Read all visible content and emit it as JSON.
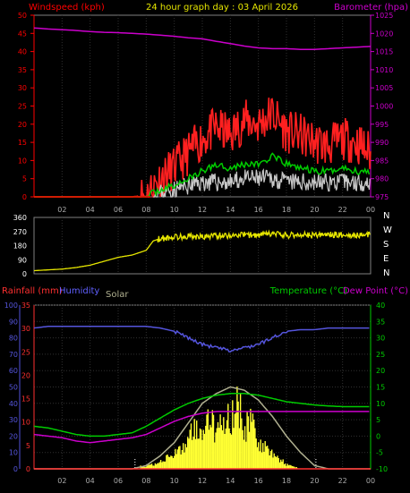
{
  "header": {
    "left": "Windspeed (kph)",
    "center": "24 hour graph day : 03 April 2026",
    "right": "Barometer (hpa)"
  },
  "colors": {
    "windspeed": "#ff0000",
    "gust": "#ff2020",
    "avg_wind": "#00cc00",
    "wind_gray": "#c8c8c8",
    "wind_black": "#000000",
    "barometer": "#cc00cc",
    "direction": "#e6e600",
    "rainfall": "#ff3030",
    "humidity": "#5555dd",
    "solar": "#b0b090",
    "temperature": "#00cc00",
    "dewpoint": "#cc00cc",
    "grid": "#303030",
    "axis_left": "#ff0000",
    "axis_right": "#cc00cc"
  },
  "panel3": {
    "rain_label": "Rainfall (mm)",
    "humidity_label": "Humidity",
    "solar_label": "Solar",
    "temp_label": "Temperature (°C)",
    "dew_label": "Dew Point (°C)"
  },
  "x_ticks": [
    "02",
    "04",
    "06",
    "08",
    "10",
    "12",
    "14",
    "16",
    "18",
    "20",
    "22",
    "00"
  ],
  "chart_data": [
    {
      "type": "line",
      "title": "24 hour graph day : 03 April 2026",
      "ylabel": "Windspeed (kph)",
      "y2label": "Barometer (hpa)",
      "ylim": [
        0,
        50
      ],
      "y2lim": [
        975,
        1025
      ],
      "y_ticks": [
        "0",
        "5",
        "10",
        "15",
        "20",
        "25",
        "30",
        "35",
        "40",
        "45",
        "50"
      ],
      "y2_ticks": [
        "975",
        "980",
        "985",
        "990",
        "995",
        "1000",
        "1005",
        "1010",
        "1015",
        "1020",
        "1025"
      ],
      "x_hours": [
        0,
        1,
        2,
        3,
        4,
        5,
        6,
        7,
        8,
        9,
        10,
        11,
        12,
        13,
        14,
        15,
        16,
        17,
        18,
        19,
        20,
        21,
        22,
        23,
        24
      ],
      "series": [
        {
          "name": "Barometer (hpa)",
          "axis": "right",
          "values": [
            1021.5,
            1021.2,
            1021.0,
            1020.8,
            1020.5,
            1020.3,
            1020.2,
            1020.0,
            1019.8,
            1019.5,
            1019.2,
            1018.8,
            1018.5,
            1017.8,
            1017.2,
            1016.5,
            1016.0,
            1015.8,
            1015.8,
            1015.6,
            1015.6,
            1015.8,
            1016.0,
            1016.2,
            1016.4
          ]
        },
        {
          "axis": "left",
          "values": [
            0,
            0,
            0,
            0,
            0,
            0,
            0,
            0,
            0.5,
            5,
            8,
            12,
            16,
            19,
            17,
            21,
            20,
            23,
            18,
            17,
            15,
            14,
            16,
            15,
            12
          ]
        },
        {
          "axis": "left",
          "values": [
            0,
            0,
            0,
            0,
            0,
            0,
            0,
            0,
            0,
            2,
            3,
            5,
            7,
            9,
            8,
            9,
            9,
            11,
            9,
            8,
            7,
            7,
            8,
            7,
            7
          ]
        },
        {
          "axis": "left",
          "values": [
            0,
            0,
            0,
            0,
            0,
            0,
            0,
            0,
            0,
            1,
            2,
            3,
            4,
            4,
            4,
            5,
            5,
            5,
            4,
            4,
            4,
            4,
            4,
            4,
            4
          ]
        }
      ]
    },
    {
      "type": "line",
      "ylabel": "Wind direction",
      "ylim": [
        0,
        360
      ],
      "y_ticks": [
        "0",
        "90",
        "180",
        "270",
        "360"
      ],
      "y2_ticks": [
        "N",
        "W",
        "S",
        "E",
        "N"
      ],
      "x_hours": [
        0,
        1,
        2,
        3,
        4,
        5,
        6,
        7,
        8,
        8.5,
        9,
        10,
        11,
        12,
        13,
        14,
        15,
        16,
        17,
        18,
        19,
        20,
        21,
        22,
        23,
        24
      ],
      "values": [
        20,
        25,
        30,
        40,
        55,
        80,
        105,
        120,
        150,
        210,
        225,
        235,
        240,
        235,
        245,
        245,
        250,
        245,
        255,
        245,
        250,
        245,
        250,
        250,
        245,
        250
      ]
    },
    {
      "type": "line",
      "ylabel": "Rainfall (mm)",
      "y2label": "Temperature (°C) / Dew Point (°C)",
      "ylim": [
        0,
        35
      ],
      "humidity_lim": [
        0,
        100
      ],
      "y2lim": [
        -10,
        40
      ],
      "rain_ticks": [
        "0",
        "5",
        "10",
        "15",
        "20",
        "25",
        "30",
        "35"
      ],
      "humidity_ticks": [
        "0",
        "10",
        "20",
        "30",
        "40",
        "50",
        "60",
        "70",
        "80",
        "90",
        "100"
      ],
      "temp_ticks": [
        "-10",
        "-5",
        "0",
        "5",
        "10",
        "15",
        "20",
        "25",
        "30",
        "35",
        "40"
      ],
      "x_hours": [
        0,
        1,
        2,
        3,
        4,
        5,
        6,
        7,
        8,
        9,
        10,
        11,
        12,
        13,
        14,
        15,
        16,
        17,
        18,
        19,
        20,
        21,
        22,
        23,
        24
      ],
      "series": [
        {
          "name": "Humidity",
          "axis": "humidity",
          "values": [
            86,
            87,
            87,
            87,
            87,
            87,
            87,
            87,
            87,
            86,
            84,
            80,
            76,
            74,
            72,
            74,
            76,
            80,
            84,
            85,
            85,
            86,
            86,
            86,
            86
          ]
        },
        {
          "name": "Temperature (°C)",
          "axis": "temp",
          "values": [
            3,
            2.5,
            1.5,
            0.5,
            0,
            0,
            0.5,
            1,
            3,
            5.5,
            8,
            10,
            11.5,
            12.5,
            13,
            13,
            12.5,
            11.5,
            10.5,
            10,
            9.5,
            9.2,
            9,
            9,
            9
          ]
        },
        {
          "name": "Dew Point (°C)",
          "axis": "temp",
          "values": [
            0.5,
            0,
            -0.5,
            -1.5,
            -2,
            -1.5,
            -1,
            -0.5,
            0.5,
            2.5,
            4.5,
            6,
            7,
            7.5,
            7.5,
            7.5,
            7.5,
            7.5,
            7.5,
            7.5,
            7.5,
            7.5,
            7.5,
            7.5,
            7.5
          ]
        },
        {
          "name": "Solar",
          "axis": "temp",
          "values": [
            -10,
            -10,
            -10,
            -10,
            -10,
            -10,
            -10,
            -10,
            -9,
            -6,
            -2,
            4,
            10,
            13,
            15,
            14,
            11,
            6,
            0,
            -5,
            -9,
            -10,
            -10,
            -10,
            -10
          ]
        },
        {
          "name": "Rainfall (mm)",
          "axis": "rain",
          "values": [
            0,
            0,
            0,
            0,
            0,
            0,
            0,
            0,
            0,
            0,
            0,
            0,
            0,
            0,
            0,
            0,
            0,
            0,
            0,
            0,
            0,
            0,
            0,
            0,
            0
          ]
        }
      ],
      "solar_bars_hours": [
        8,
        9,
        10,
        11,
        11.5,
        12,
        12.5,
        13,
        13.5,
        14,
        14.5,
        15,
        15.5,
        16,
        17,
        18,
        19
      ],
      "solar_bars_values": [
        -9,
        -7,
        -4,
        2,
        10,
        6,
        12,
        4,
        14,
        9,
        20,
        7,
        10,
        2,
        -4,
        -8,
        -10
      ]
    }
  ]
}
